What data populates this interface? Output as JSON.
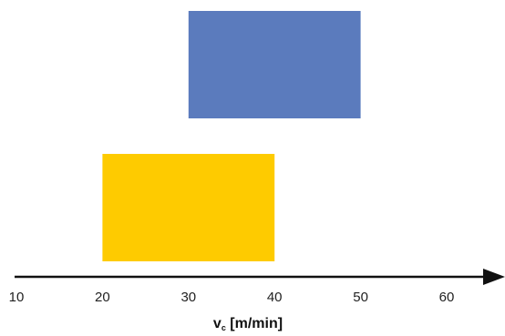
{
  "chart_data": {
    "type": "bar",
    "orientation": "horizontal-range",
    "title": "",
    "xlabel": {
      "main": "v",
      "subscript": "c",
      "unit": " [m/min]"
    },
    "ylabel": "",
    "xlim": [
      10,
      60
    ],
    "xticks": [
      "10",
      "20",
      "30",
      "40",
      "50",
      "60"
    ],
    "grid": false,
    "legend": "none",
    "ranges": [
      {
        "start": 30,
        "end": 50,
        "color": "#5b7bbd"
      },
      {
        "start": 20,
        "end": 40,
        "color": "#fecb00"
      }
    ]
  }
}
